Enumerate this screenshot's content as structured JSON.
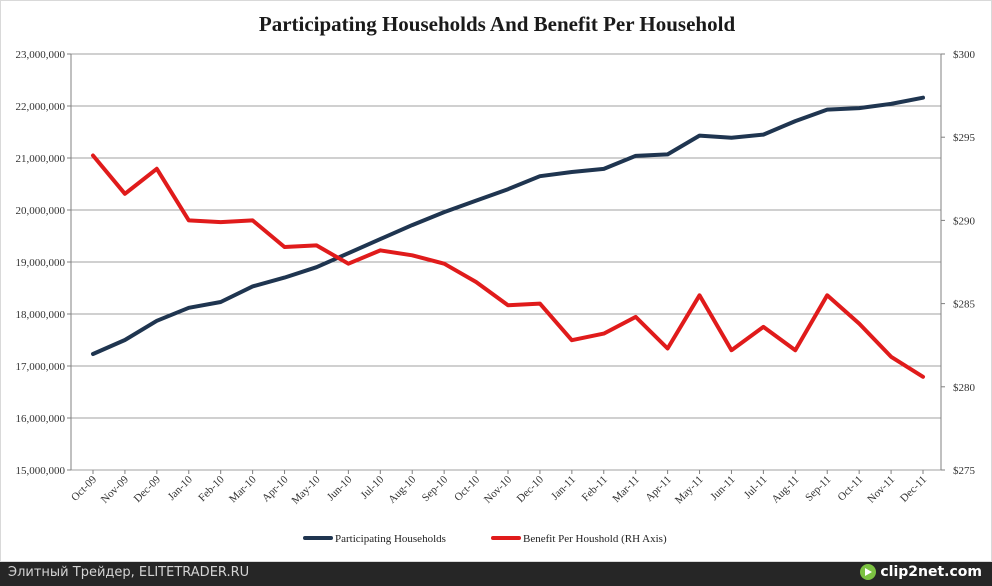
{
  "chart_data": {
    "type": "line",
    "title": "Participating Households And Benefit Per Household",
    "categories": [
      "Oct-09",
      "Nov-09",
      "Dec-09",
      "Jan-10",
      "Feb-10",
      "Mar-10",
      "Apr-10",
      "May-10",
      "Jun-10",
      "Jul-10",
      "Aug-10",
      "Sep-10",
      "Oct-10",
      "Nov-10",
      "Dec-10",
      "Jan-11",
      "Feb-11",
      "Mar-11",
      "Apr-11",
      "May-11",
      "Jun-11",
      "Jul-11",
      "Aug-11",
      "Sep-11",
      "Oct-11",
      "Nov-11",
      "Dec-11"
    ],
    "left_axis": {
      "ylim": [
        15000000,
        23000000
      ],
      "ticks": [
        15000000,
        16000000,
        17000000,
        18000000,
        19000000,
        20000000,
        21000000,
        22000000,
        23000000
      ],
      "tick_labels": [
        "15,000,000",
        "16,000,000",
        "17,000,000",
        "18,000,000",
        "19,000,000",
        "20,000,000",
        "21,000,000",
        "22,000,000",
        "23,000,000"
      ]
    },
    "right_axis": {
      "ylim": [
        275,
        300
      ],
      "ticks": [
        275,
        280,
        285,
        290,
        295,
        300
      ],
      "tick_labels": [
        "$275",
        "$280",
        "$285",
        "$290",
        "$295",
        "$300"
      ]
    },
    "grid": true,
    "legend_position": "bottom",
    "series": [
      {
        "name": "Participating Households",
        "axis": "left",
        "color": "#1f3550",
        "values": [
          17230000,
          17500000,
          17870000,
          18120000,
          18230000,
          18530000,
          18700000,
          18900000,
          19170000,
          19440000,
          19710000,
          19960000,
          20180000,
          20400000,
          20650000,
          20730000,
          20790000,
          21040000,
          21070000,
          21430000,
          21390000,
          21450000,
          21710000,
          21930000,
          21960000,
          22040000,
          22160000
        ]
      },
      {
        "name": "Benefit Per Houshold (RH Axis)",
        "axis": "right",
        "color": "#e01b1b",
        "values": [
          293.9,
          291.6,
          293.1,
          290.0,
          289.9,
          290.0,
          288.4,
          288.5,
          287.4,
          288.2,
          287.9,
          287.4,
          286.3,
          284.9,
          285.0,
          282.8,
          283.2,
          284.2,
          282.3,
          285.5,
          282.2,
          283.6,
          282.2,
          285.5,
          283.8,
          281.8,
          280.6
        ]
      }
    ]
  },
  "footer": {
    "left_text": "Элитный Трейдер, ELITETRADER.RU",
    "brand_text": "clip2net.com"
  },
  "colors": {
    "grid": "#a0a0a0",
    "axis_text": "#333333",
    "footer_bg": "#262626"
  }
}
